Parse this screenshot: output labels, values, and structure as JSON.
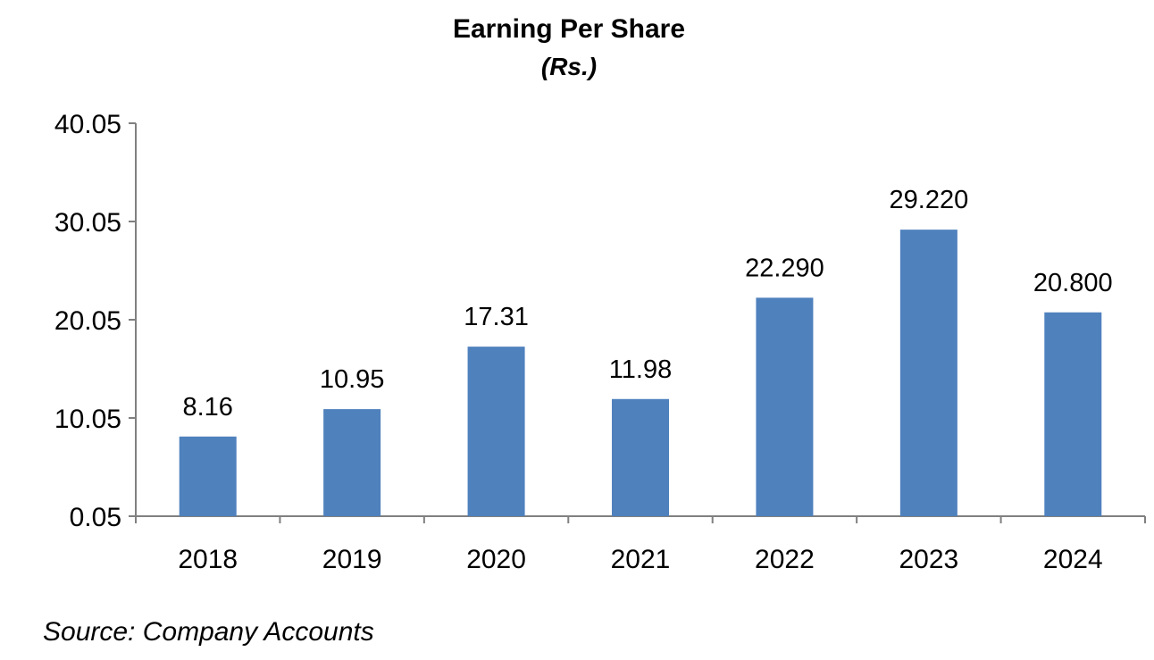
{
  "chart_data": {
    "type": "bar",
    "title": "Earning Per Share",
    "subtitle": "(Rs.)",
    "categories": [
      "2018",
      "2019",
      "2020",
      "2021",
      "2022",
      "2023",
      "2024"
    ],
    "values": [
      8.16,
      10.95,
      17.31,
      11.98,
      22.29,
      29.22,
      20.8
    ],
    "data_labels": [
      "8.16",
      "10.95",
      "17.31",
      "11.98",
      "22.290",
      "29.220",
      "20.800"
    ],
    "y_ticks": [
      0.05,
      10.05,
      20.05,
      30.05,
      40.05
    ],
    "y_tick_labels": [
      "0.05",
      "10.05",
      "20.05",
      "30.05",
      "40.05"
    ],
    "ylim": [
      0.05,
      40.05
    ],
    "xlabel": "",
    "ylabel": "",
    "grid": false,
    "legend": "none",
    "bar_color": "#4F81BD"
  },
  "source_note": "Source: Company Accounts"
}
